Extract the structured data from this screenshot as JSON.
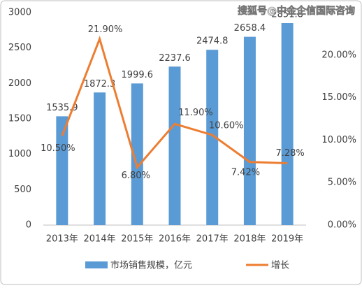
{
  "chart_data": {
    "type": "bar-line",
    "categories": [
      "2013年",
      "2014年",
      "2015年",
      "2016年",
      "2017年",
      "2018年",
      "2019年"
    ],
    "series": [
      {
        "name": "市场销售规模，亿元",
        "type": "bar",
        "color": "#5b9bd5",
        "values": [
          1535.9,
          1872.3,
          1999.6,
          2237.6,
          2474.8,
          2658.4,
          2851.8
        ]
      },
      {
        "name": "增长",
        "type": "line",
        "axis": "y2",
        "color": "#ed7d31",
        "values": [
          10.5,
          21.9,
          6.8,
          11.9,
          10.6,
          7.42,
          7.28
        ],
        "value_labels": [
          "10.50%",
          "21.90%",
          "6.80%",
          "11.90%",
          "10.60%",
          "7.42%",
          "7.28%"
        ]
      }
    ],
    "ylim": [
      0,
      3000
    ],
    "yticks": [
      0,
      500,
      1000,
      1500,
      2000,
      2500,
      3000
    ],
    "y2lim": [
      0,
      25
    ],
    "y2ticks": [
      {
        "value": 0,
        "label": "0.00%"
      },
      {
        "value": 5,
        "label": "5.00%"
      },
      {
        "value": 10,
        "label": "10.00%"
      },
      {
        "value": 15,
        "label": "15.00%"
      },
      {
        "value": 20,
        "label": "20.00%"
      }
    ],
    "grid": false,
    "legend": "bottom",
    "watermark": "搜狐号@中金企信国际咨询"
  }
}
